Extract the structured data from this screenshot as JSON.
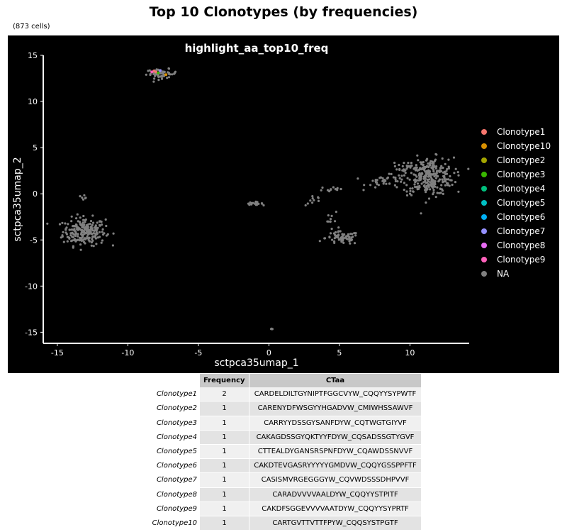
{
  "figure": {
    "title": "Top 10 Clonotypes (by frequencies)",
    "subtitle": "(873 cells)"
  },
  "chart_data": {
    "type": "scatter",
    "title": "highlight_aa_top10_freq",
    "xlabel": "sctpca35umap_1",
    "ylabel": "sctpca35umap_2",
    "xlim": [
      -16,
      14.2
    ],
    "ylim": [
      -16.2,
      15
    ],
    "xticks": [
      -15,
      -10,
      -5,
      0,
      5,
      10
    ],
    "yticks": [
      15,
      10,
      5,
      0,
      -5,
      -10,
      -15
    ],
    "background": "#000000",
    "na_color": "#808080",
    "legend_position": "right",
    "legend": [
      {
        "name": "Clonotype1",
        "color": "#F8766D"
      },
      {
        "name": "Clonotype10",
        "color": "#D89000"
      },
      {
        "name": "Clonotype2",
        "color": "#A3A500"
      },
      {
        "name": "Clonotype3",
        "color": "#39B600"
      },
      {
        "name": "Clonotype4",
        "color": "#00BF7D"
      },
      {
        "name": "Clonotype5",
        "color": "#00BFC4"
      },
      {
        "name": "Clonotype6",
        "color": "#00B0F6"
      },
      {
        "name": "Clonotype7",
        "color": "#9590FF"
      },
      {
        "name": "Clonotype8",
        "color": "#E76BF3"
      },
      {
        "name": "Clonotype9",
        "color": "#FF62BC"
      },
      {
        "name": "NA",
        "color": "#808080"
      }
    ],
    "clusters": [
      {
        "group": "NA",
        "cx": -13.1,
        "cy": -4.1,
        "sx": 0.75,
        "sy": 0.75,
        "n": 240
      },
      {
        "group": "NA",
        "cx": -13.1,
        "cy": -0.3,
        "sx": 0.1,
        "sy": 0.15,
        "n": 6
      },
      {
        "group": "NA",
        "cx": -7.6,
        "cy": 13.0,
        "sx": 0.55,
        "sy": 0.25,
        "n": 55
      },
      {
        "group": "NA",
        "cx": -1.0,
        "cy": -1.05,
        "sx": 0.28,
        "sy": 0.08,
        "n": 22
      },
      {
        "group": "NA",
        "cx": 0.2,
        "cy": -14.7,
        "sx": 0.08,
        "sy": 0.05,
        "n": 4
      },
      {
        "group": "NA",
        "cx": 3.2,
        "cy": -0.7,
        "sx": 0.3,
        "sy": 0.3,
        "n": 10
      },
      {
        "group": "NA",
        "cx": 4.5,
        "cy": 0.5,
        "sx": 0.5,
        "sy": 0.2,
        "n": 14
      },
      {
        "group": "NA",
        "cx": 5.2,
        "cy": -4.8,
        "sx": 0.6,
        "sy": 0.35,
        "n": 70
      },
      {
        "group": "NA",
        "cx": 4.4,
        "cy": -2.8,
        "sx": 0.25,
        "sy": 0.6,
        "n": 10
      },
      {
        "group": "NA",
        "cx": 8.3,
        "cy": 1.3,
        "sx": 0.7,
        "sy": 0.35,
        "n": 35
      },
      {
        "group": "NA",
        "cx": 11.3,
        "cy": 1.9,
        "sx": 0.9,
        "sy": 1.0,
        "n": 300
      },
      {
        "group": "NA",
        "cx": 9.4,
        "cy": 2.6,
        "sx": 0.4,
        "sy": 0.5,
        "n": 18
      }
    ],
    "highlighted_points": [
      {
        "group": "Clonotype1",
        "x": -8.0,
        "y": 13.2
      },
      {
        "group": "Clonotype1",
        "x": -8.15,
        "y": 13.3
      },
      {
        "group": "Clonotype10",
        "x": -7.3,
        "y": 12.9
      },
      {
        "group": "Clonotype3",
        "x": -7.85,
        "y": 13.1
      },
      {
        "group": "Clonotype7",
        "x": -7.7,
        "y": 13.35
      },
      {
        "group": "Clonotype9",
        "x": -8.3,
        "y": 13.2
      }
    ]
  },
  "table": {
    "columns": [
      "Frequency",
      "CTaa"
    ],
    "rows": [
      {
        "label": "Clonotype1",
        "frequency": "2",
        "ctaa": "CARDELDILTGYNIPTFGGCVYW_CQQYYSYPWTF"
      },
      {
        "label": "Clonotype2",
        "frequency": "1",
        "ctaa": "CARENYDFWSGYYHGADVW_CMIWHSSAWVF"
      },
      {
        "label": "Clonotype3",
        "frequency": "1",
        "ctaa": "CARRYYDSSGYSANFDYW_CQTWGTGIYVF"
      },
      {
        "label": "Clonotype4",
        "frequency": "1",
        "ctaa": "CAKAGDSSGYQKTYYFDYW_CQSADSSGTYGVF"
      },
      {
        "label": "Clonotype5",
        "frequency": "1",
        "ctaa": "CTTEALDYGANSRSPNFDYW_CQAWDSSNVVF"
      },
      {
        "label": "Clonotype6",
        "frequency": "1",
        "ctaa": "CAKDTEVGASRYYYYYGMDVW_CQQYGSSPPFTF"
      },
      {
        "label": "Clonotype7",
        "frequency": "1",
        "ctaa": "CASISMVRGEGGGYW_CQVWDSSSDHPVVF"
      },
      {
        "label": "Clonotype8",
        "frequency": "1",
        "ctaa": "CARADVVVVAALDYW_CQQYYSTPITF"
      },
      {
        "label": "Clonotype9",
        "frequency": "1",
        "ctaa": "CAKDFSGGEVVVVAATDYW_CQQYYSYPRTF"
      },
      {
        "label": "Clonotype10",
        "frequency": "1",
        "ctaa": "CARTGVTTVTTFPYW_CQQSYSTPGTF"
      }
    ]
  }
}
